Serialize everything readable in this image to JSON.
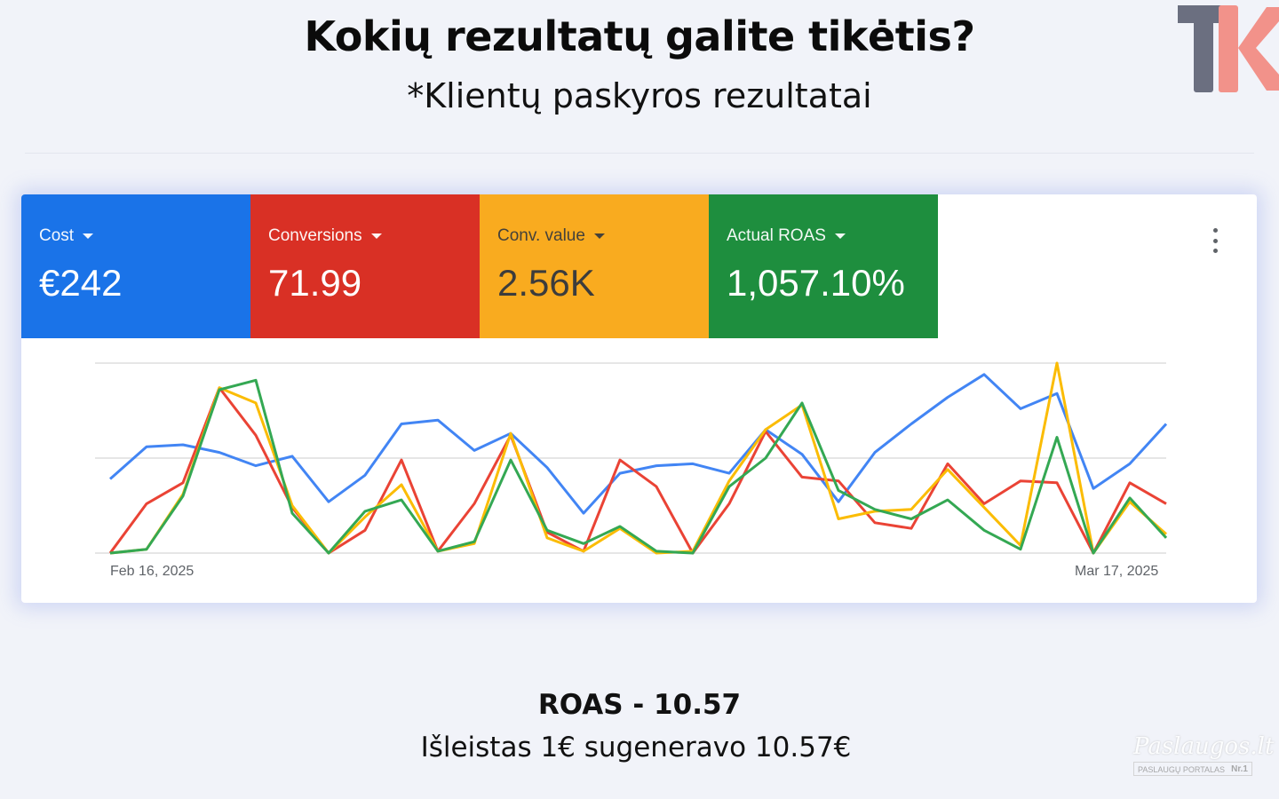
{
  "header": {
    "title": "Kokių rezultatų galite tikėtis?",
    "subtitle": "*Klientų paskyros rezultatai",
    "logo_text": "TK"
  },
  "metrics": [
    {
      "label": "Cost",
      "value": "€242",
      "color": "#1a73e8"
    },
    {
      "label": "Conversions",
      "value": "71.99",
      "color": "#d93025"
    },
    {
      "label": "Conv. value",
      "value": "2.56K",
      "color": "#f9ab1f"
    },
    {
      "label": "Actual ROAS",
      "value": "1,057.10%",
      "color": "#1e8e3e"
    }
  ],
  "chart_data": {
    "type": "line",
    "x_start_label": "Feb 16, 2025",
    "x_end_label": "Mar 17, 2025",
    "x": [
      "2025-02-16",
      "2025-02-17",
      "2025-02-18",
      "2025-02-19",
      "2025-02-20",
      "2025-02-21",
      "2025-02-22",
      "2025-02-23",
      "2025-02-24",
      "2025-02-25",
      "2025-02-26",
      "2025-02-27",
      "2025-02-28",
      "2025-03-01",
      "2025-03-02",
      "2025-03-03",
      "2025-03-04",
      "2025-03-05",
      "2025-03-06",
      "2025-03-07",
      "2025-03-08",
      "2025-03-09",
      "2025-03-10",
      "2025-03-11",
      "2025-03-12",
      "2025-03-13",
      "2025-03-14",
      "2025-03-15",
      "2025-03-16",
      "2025-03-17"
    ],
    "ylim": [
      0,
      100
    ],
    "grid": true,
    "series": [
      {
        "color": "#4285f4",
        "values": [
          39,
          56,
          57,
          53,
          46,
          51,
          27,
          41,
          68,
          70,
          54,
          63,
          45,
          21,
          42,
          46,
          47,
          42,
          65,
          52,
          27,
          53,
          68,
          82,
          94,
          76,
          84,
          34,
          47,
          68
        ]
      },
      {
        "color": "#ea4335",
        "values": [
          0,
          26,
          37,
          87,
          62,
          24,
          0,
          12,
          49,
          1,
          26,
          62,
          11,
          1,
          49,
          35,
          0,
          26,
          64,
          40,
          38,
          16,
          13,
          47,
          26,
          38,
          37,
          0,
          37,
          26
        ]
      },
      {
        "color": "#fbbc04",
        "values": [
          0,
          2,
          31,
          87,
          79,
          25,
          0,
          19,
          36,
          1,
          5,
          63,
          8,
          1,
          13,
          0,
          1,
          38,
          65,
          78,
          18,
          22,
          23,
          44,
          24,
          4,
          100,
          0,
          27,
          10
        ]
      },
      {
        "color": "#34a853",
        "values": [
          0,
          2,
          30,
          86,
          91,
          21,
          0,
          22,
          28,
          1,
          6,
          49,
          12,
          5,
          14,
          1,
          0,
          35,
          50,
          79,
          33,
          23,
          18,
          28,
          12,
          2,
          61,
          0,
          29,
          8
        ]
      }
    ]
  },
  "footer": {
    "roas": "ROAS - 10.57",
    "spent": "Išleistas 1€ sugeneravo 10.57€"
  },
  "watermark": {
    "name": "Paslaugos.lt",
    "tagline": "PASLAUGŲ PORTALAS",
    "badge": "Nr.1"
  }
}
